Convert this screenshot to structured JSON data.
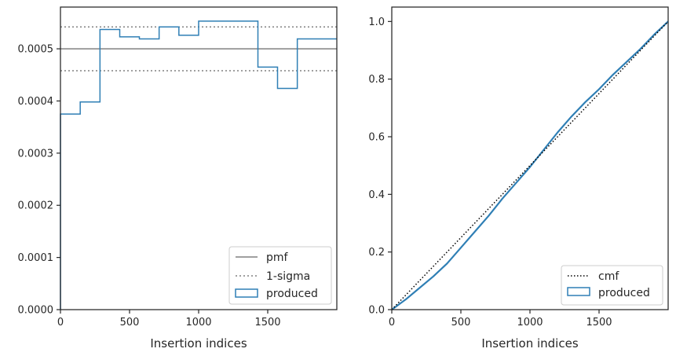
{
  "colors": {
    "produced": "#2f7fb5",
    "reference": "#808080",
    "cmf": "#000000",
    "axes": "#262626"
  },
  "chart_data": [
    {
      "type": "step",
      "xlabel": "Insertion indices",
      "ylabel": "",
      "xlim": [
        0,
        2000
      ],
      "ylim": [
        0,
        0.00058
      ],
      "grid": false,
      "legend_position": "lower-right",
      "x_ticks": [
        0,
        500,
        1000,
        1500
      ],
      "x_tick_labels": [
        "0",
        "500",
        "1000",
        "1500"
      ],
      "y_ticks": [
        0,
        0.0001,
        0.0002,
        0.0003,
        0.0004,
        0.0005
      ],
      "y_tick_labels": [
        "0.0000",
        "0.0001",
        "0.0002",
        "0.0003",
        "0.0004",
        "0.0005"
      ],
      "pmf": 0.0005,
      "sigma_band": [
        0.000458,
        0.000542
      ],
      "bin_edges": [
        0,
        143,
        286,
        429,
        571,
        714,
        857,
        1000,
        1143,
        1286,
        1429,
        1571,
        1714,
        2000
      ],
      "histogram": [
        0.000375,
        0.000398,
        0.000537,
        0.000523,
        0.000519,
        0.000542,
        0.000526,
        0.000553,
        0.000553,
        0.000553,
        0.000465,
        0.000424,
        0.000519
      ],
      "legend": [
        "pmf",
        "1-sigma",
        "produced"
      ]
    },
    {
      "type": "line",
      "xlabel": "Insertion indices",
      "ylabel": "",
      "xlim": [
        0,
        2000
      ],
      "ylim": [
        0,
        1.05
      ],
      "grid": false,
      "legend_position": "lower-right",
      "x_ticks": [
        0,
        500,
        1000,
        1500
      ],
      "x_tick_labels": [
        "0",
        "500",
        "1000",
        "1500"
      ],
      "y_ticks": [
        0,
        0.2,
        0.4,
        0.6,
        0.8,
        1.0
      ],
      "y_tick_labels": [
        "0.0",
        "0.2",
        "0.4",
        "0.6",
        "0.8",
        "1.0"
      ],
      "cmf": {
        "x": [
          0,
          2000
        ],
        "y": [
          0,
          1
        ]
      },
      "produced": {
        "x": [
          0,
          100,
          200,
          300,
          400,
          500,
          600,
          700,
          800,
          900,
          1000,
          1100,
          1200,
          1300,
          1400,
          1500,
          1600,
          1700,
          1800,
          1900,
          2000
        ],
        "y": [
          0,
          0.035,
          0.075,
          0.115,
          0.16,
          0.215,
          0.27,
          0.325,
          0.385,
          0.44,
          0.495,
          0.555,
          0.615,
          0.67,
          0.72,
          0.765,
          0.815,
          0.86,
          0.905,
          0.955,
          1.0
        ]
      },
      "legend": [
        "cmf",
        "produced"
      ]
    }
  ]
}
